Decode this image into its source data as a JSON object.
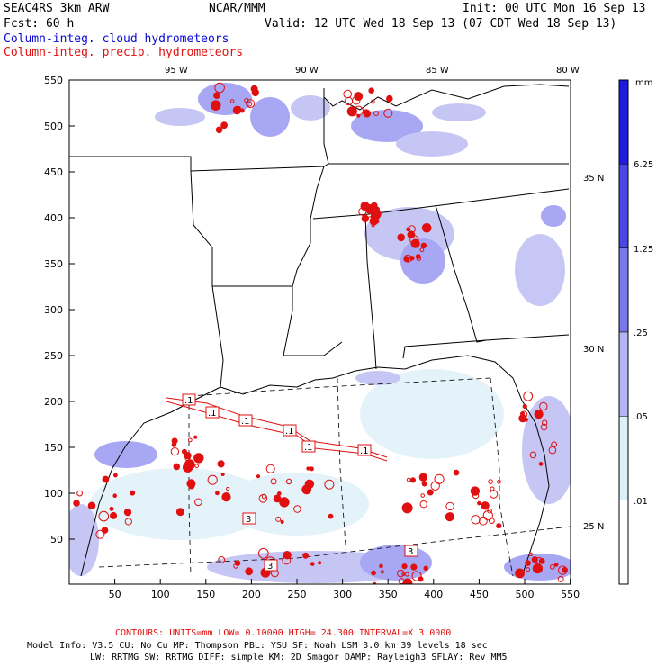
{
  "header": {
    "model_name": "SEAC4RS  3km ARW",
    "org": "NCAR/MMM",
    "init": "Init: 00 UTC Mon 16 Sep 13",
    "fcst": "Fcst:   60 h",
    "valid": "Valid: 12 UTC Wed 18 Sep 13 (07 CDT Wed 18 Sep 13)",
    "field_cloud": "Column-integ. cloud hydrometeors",
    "field_precip": "Column-integ. precip. hydrometeors"
  },
  "map": {
    "x_ticks": [
      "50",
      "100",
      "150",
      "200",
      "250",
      "300",
      "350",
      "400",
      "450",
      "500",
      "550"
    ],
    "y_ticks": [
      "550",
      "500",
      "450",
      "400",
      "350",
      "300",
      "250",
      "200",
      "150",
      "100",
      "50"
    ],
    "lon_labels": [
      "95 W",
      "90 W",
      "85 W",
      "80 W"
    ],
    "lat_labels": [
      "35 N",
      "30 N",
      "25 N"
    ],
    "contour_labels": [
      ".1",
      ".1",
      ".1",
      ".1",
      ".1",
      ".1",
      "3",
      "3",
      "3"
    ]
  },
  "colorbar": {
    "units": "mm",
    "labels": [
      "6.25",
      "1.25",
      ".25",
      ".05",
      ".01"
    ],
    "colors": [
      "#1c1cde",
      "#4848e6",
      "#7878ea",
      "#b4b4f2",
      "#dcf0f8",
      "#ffffff"
    ]
  },
  "footer": {
    "contours": "CONTOURS:  UNITS=mm  LOW= 0.10000    HIGH= 24.300    INTERVAL=X  3.0000",
    "line1": "Model Info: V3.5     CU: No Cu     MP: Thompson    PBL: YSU     SF: Noah LSM     3.0 km   39 levels   18 sec",
    "line2": "LW: RRTMG    SW: RRTMG  DIFF: simple KM: 2D Smagor DAMP: Rayleigh3  SFLAY: Rev MM5"
  }
}
